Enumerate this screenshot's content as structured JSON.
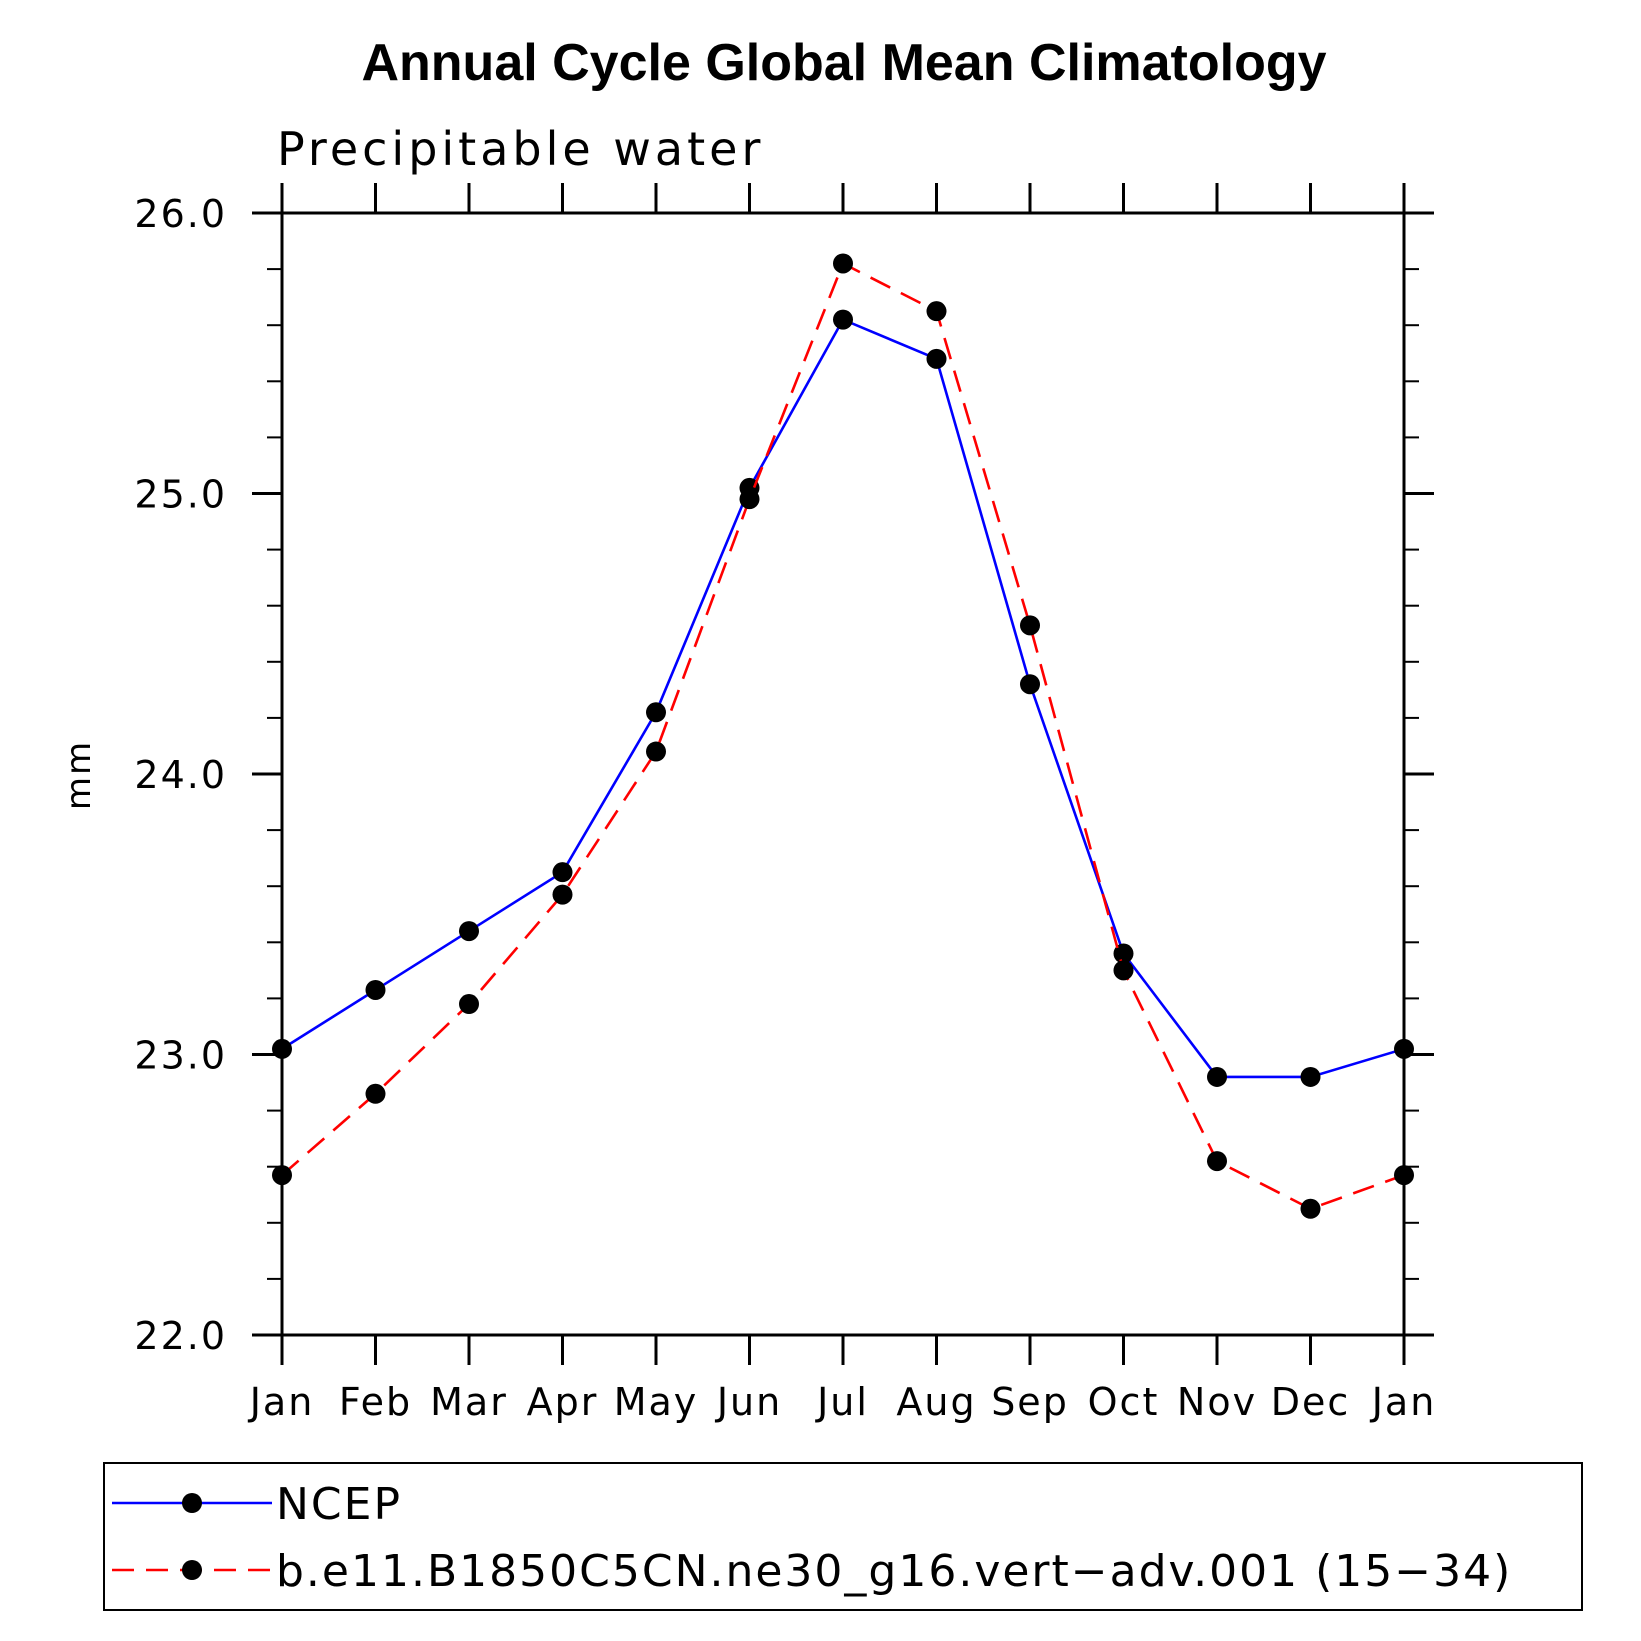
{
  "chart_data": {
    "type": "line",
    "title": "Annual Cycle Global Mean Climatology",
    "subtitle": "Precipitable water",
    "xlabel": "",
    "ylabel": "mm",
    "categories": [
      "Jan",
      "Feb",
      "Mar",
      "Apr",
      "May",
      "Jun",
      "Jul",
      "Aug",
      "Sep",
      "Oct",
      "Nov",
      "Dec",
      "Jan"
    ],
    "ylim": [
      22.0,
      26.0
    ],
    "yticks": [
      "22.0",
      "23.0",
      "24.0",
      "25.0",
      "26.0"
    ],
    "grid": false,
    "legend_position": "bottom",
    "series": [
      {
        "name": "NCEP",
        "color": "#0000ff",
        "style": "solid",
        "values": [
          23.02,
          23.23,
          23.44,
          23.65,
          24.22,
          25.02,
          25.62,
          25.48,
          24.32,
          23.36,
          22.92,
          22.92,
          23.02
        ]
      },
      {
        "name": "b.e11.B1850C5CN.ne30_g16.vert−adv.001 (15−34)",
        "color": "#ff0000",
        "style": "dashed",
        "values": [
          22.57,
          22.86,
          23.18,
          23.57,
          24.08,
          24.98,
          25.82,
          25.65,
          24.53,
          23.3,
          22.62,
          22.45,
          22.57
        ]
      }
    ]
  }
}
